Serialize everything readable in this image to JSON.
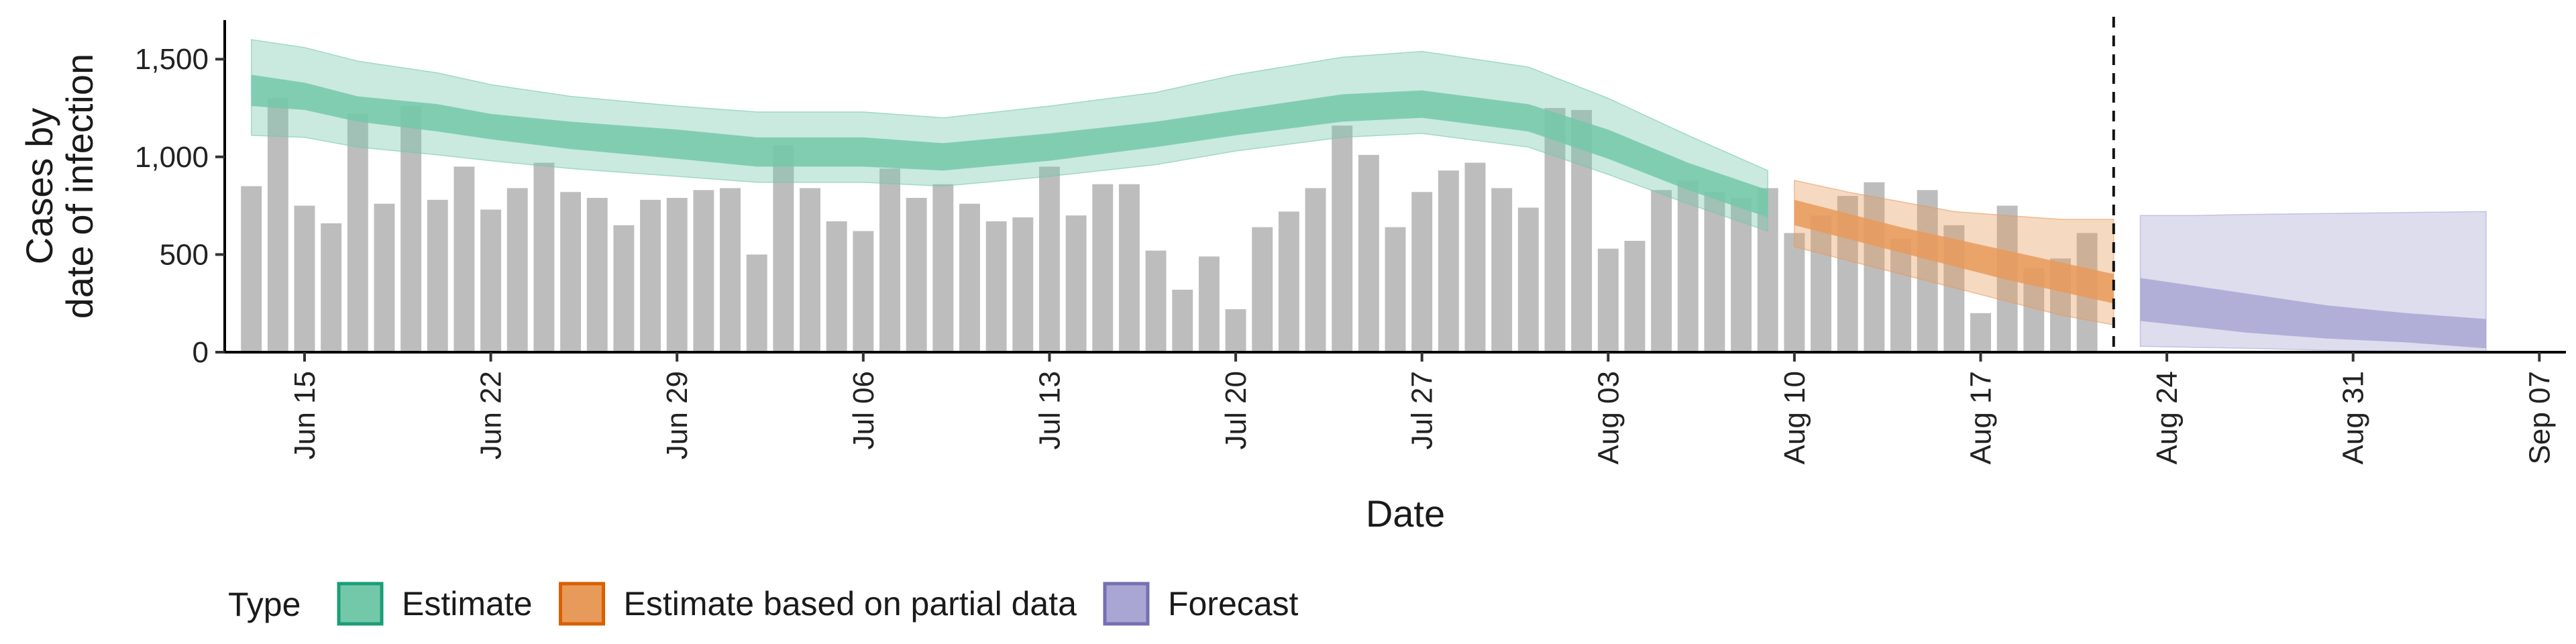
{
  "chart_data": {
    "type": "bar",
    "xlabel": "Date",
    "ylabel": [
      "Cases by",
      "date of infection"
    ],
    "ylim": [
      0,
      1700
    ],
    "y_ticks": [
      0,
      500,
      1000,
      1500
    ],
    "y_tick_labels": [
      "0",
      "500",
      "1,000",
      "1,500"
    ],
    "x_start": "2020-06-12",
    "x_end": "2020-09-08",
    "x_ticks": [
      {
        "date": "2020-06-15",
        "label": "Jun 15"
      },
      {
        "date": "2020-06-22",
        "label": "Jun 22"
      },
      {
        "date": "2020-06-29",
        "label": "Jun 29"
      },
      {
        "date": "2020-07-06",
        "label": "Jul 06"
      },
      {
        "date": "2020-07-13",
        "label": "Jul 13"
      },
      {
        "date": "2020-07-20",
        "label": "Jul 20"
      },
      {
        "date": "2020-07-27",
        "label": "Jul 27"
      },
      {
        "date": "2020-08-03",
        "label": "Aug 03"
      },
      {
        "date": "2020-08-10",
        "label": "Aug 10"
      },
      {
        "date": "2020-08-17",
        "label": "Aug 17"
      },
      {
        "date": "2020-08-24",
        "label": "Aug 24"
      },
      {
        "date": "2020-08-31",
        "label": "Aug 31"
      },
      {
        "date": "2020-09-07",
        "label": "Sep 07"
      }
    ],
    "vline_date": "2020-08-22",
    "bars": {
      "first_date": "2020-06-13",
      "color": "#bdbdbd",
      "values": [
        850,
        1300,
        750,
        660,
        1220,
        760,
        1260,
        780,
        950,
        730,
        840,
        970,
        820,
        790,
        650,
        780,
        790,
        830,
        840,
        500,
        1060,
        840,
        670,
        620,
        940,
        790,
        860,
        760,
        670,
        690,
        950,
        700,
        860,
        860,
        520,
        320,
        490,
        220,
        640,
        720,
        840,
        1160,
        1010,
        640,
        820,
        930,
        970,
        840,
        740,
        1250,
        1240,
        530,
        570,
        830,
        880,
        820,
        790,
        840,
        610,
        700,
        800,
        870,
        580,
        830,
        650,
        200,
        750,
        430,
        480,
        610
      ]
    },
    "series": [
      {
        "name": "Estimate",
        "color": "#1b9e77",
        "fill": "#74c8aa",
        "dates": [
          "2020-06-13",
          "2020-06-15",
          "2020-06-17",
          "2020-06-20",
          "2020-06-22",
          "2020-06-25",
          "2020-06-29",
          "2020-07-02",
          "2020-07-06",
          "2020-07-09",
          "2020-07-13",
          "2020-07-17",
          "2020-07-20",
          "2020-07-24",
          "2020-07-27",
          "2020-07-31",
          "2020-08-03",
          "2020-08-06",
          "2020-08-09"
        ],
        "inner_lower": [
          1260,
          1240,
          1180,
          1130,
          1090,
          1040,
          990,
          950,
          950,
          930,
          980,
          1050,
          1110,
          1180,
          1200,
          1130,
          990,
          830,
          690
        ],
        "inner_upper": [
          1420,
          1380,
          1310,
          1270,
          1220,
          1180,
          1140,
          1100,
          1100,
          1070,
          1120,
          1180,
          1240,
          1320,
          1340,
          1270,
          1140,
          970,
          830
        ],
        "outer_lower": [
          1110,
          1100,
          1050,
          1010,
          980,
          940,
          900,
          870,
          870,
          850,
          900,
          960,
          1030,
          1100,
          1120,
          1050,
          910,
          760,
          620
        ],
        "outer_upper": [
          1600,
          1560,
          1490,
          1430,
          1370,
          1310,
          1260,
          1230,
          1230,
          1200,
          1260,
          1330,
          1420,
          1510,
          1540,
          1460,
          1300,
          1110,
          930
        ]
      },
      {
        "name": "Estimate based on partial data",
        "color": "#d95f02",
        "fill": "#e89a5b",
        "dates": [
          "2020-08-10",
          "2020-08-12",
          "2020-08-14",
          "2020-08-16",
          "2020-08-18",
          "2020-08-20",
          "2020-08-22"
        ],
        "inner_lower": [
          650,
          580,
          510,
          440,
          370,
          310,
          250
        ],
        "inner_upper": [
          780,
          710,
          640,
          580,
          520,
          460,
          400
        ],
        "outer_lower": [
          540,
          470,
          400,
          330,
          260,
          190,
          140
        ],
        "outer_upper": [
          880,
          820,
          770,
          720,
          700,
          680,
          680
        ]
      },
      {
        "name": "Forecast",
        "color": "#7570b3",
        "fill": "#a9a6d3",
        "dates": [
          "2020-08-23",
          "2020-08-25",
          "2020-08-27",
          "2020-08-30",
          "2020-09-02",
          "2020-09-05"
        ],
        "inner_lower": [
          160,
          130,
          100,
          70,
          50,
          20
        ],
        "inner_upper": [
          380,
          340,
          300,
          240,
          200,
          170
        ],
        "outer_lower": [
          30,
          25,
          20,
          10,
          5,
          0
        ],
        "outer_upper": [
          700,
          700,
          705,
          710,
          715,
          720
        ]
      }
    ],
    "legend": {
      "title": "Type",
      "position": "bottom",
      "items": [
        "Estimate",
        "Estimate based on partial data",
        "Forecast"
      ]
    },
    "grid": false
  }
}
